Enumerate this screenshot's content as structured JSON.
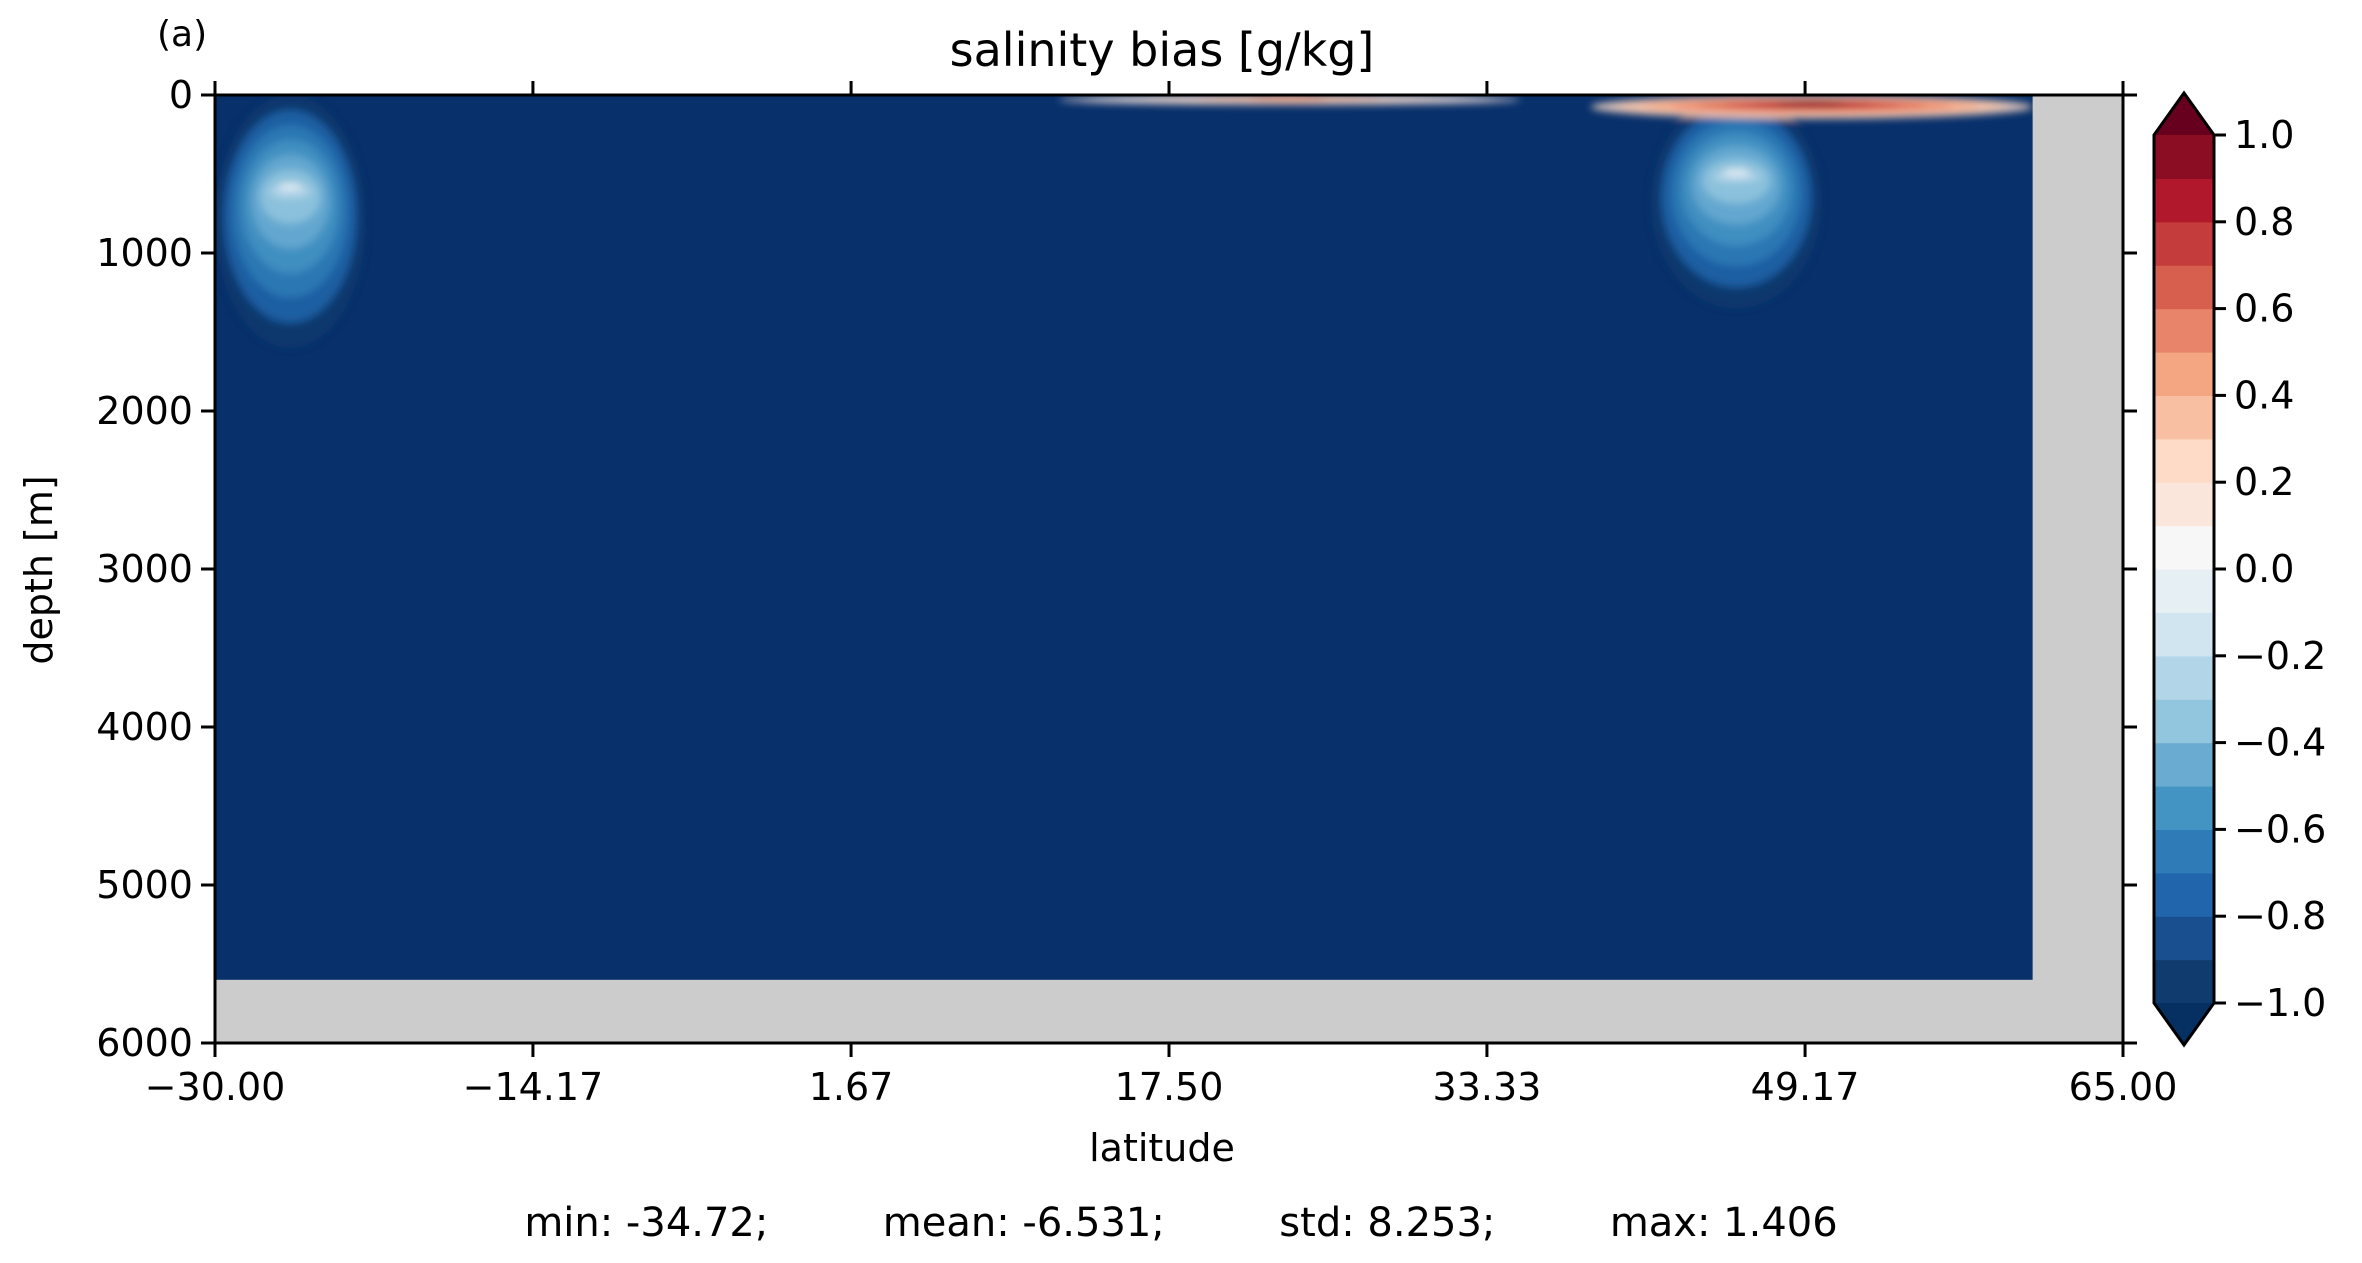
{
  "panel_label": "(a)",
  "chart_data": {
    "type": "heatmap",
    "title": "salinity bias [g/kg]",
    "xlabel": "latitude",
    "ylabel": "depth [m]",
    "xlim": [
      -30.0,
      65.0
    ],
    "ylim": [
      6000,
      0
    ],
    "y_inverted": true,
    "x_ticks": [
      "−30.00",
      "−14.17",
      "1.67",
      "17.50",
      "33.33",
      "49.17",
      "65.00"
    ],
    "x_tick_values": [
      -30.0,
      -14.17,
      1.67,
      17.5,
      33.33,
      49.17,
      65.0
    ],
    "y_ticks": [
      "0",
      "1000",
      "2000",
      "3000",
      "4000",
      "5000",
      "6000"
    ],
    "y_tick_values": [
      0,
      1000,
      2000,
      3000,
      4000,
      5000,
      6000
    ],
    "colorbar": {
      "min": -1.0,
      "max": 1.0,
      "step": 0.1,
      "extend": "both",
      "colormap": "RdBu_r",
      "ticks": [
        "1.0",
        "0.8",
        "0.6",
        "0.4",
        "0.2",
        "0.0",
        "−0.2",
        "−0.4",
        "−0.6",
        "−0.8",
        "−1.0"
      ],
      "tick_values": [
        1.0,
        0.8,
        0.6,
        0.4,
        0.2,
        0.0,
        -0.2,
        -0.4,
        -0.6,
        -0.8,
        -1.0
      ],
      "colors": [
        "#0f3b6e",
        "#1a4f8f",
        "#2166ac",
        "#2f7bb7",
        "#4393c3",
        "#6aabd2",
        "#92c5de",
        "#b3d5e8",
        "#d1e5f0",
        "#e6eff4",
        "#f7f7f7",
        "#fbe6dc",
        "#fddbc7",
        "#f8bfa2",
        "#f4a582",
        "#e8846a",
        "#d6604d",
        "#c43c3c",
        "#b2182b",
        "#8b0d24"
      ],
      "under_color": "#053061",
      "over_color": "#67001f"
    },
    "background_value_color": "#08306b",
    "land_mask_color": "#cccccc",
    "data_extent": {
      "lat_max": 60.5,
      "depth_max": 5600
    },
    "features": [
      {
        "name": "southern-freshening",
        "lat_range": [
          -30.0,
          -22.5
        ],
        "depth_range": [
          0,
          1600
        ],
        "value_range": [
          -0.9,
          -0.1
        ]
      },
      {
        "name": "northern-freshening",
        "lat_range": [
          41.5,
          50.0
        ],
        "depth_range": [
          0,
          1350
        ],
        "value_range": [
          -0.9,
          -0.1
        ]
      },
      {
        "name": "northern-surface-salty",
        "lat_range": [
          38.5,
          60.5
        ],
        "depth_range": [
          0,
          150
        ],
        "value_range": [
          0.2,
          1.0
        ]
      },
      {
        "name": "tropical-surface-salty",
        "lat_range": [
          12.0,
          35.0
        ],
        "depth_range": [
          0,
          60
        ],
        "value_range": [
          0.1,
          0.4
        ]
      }
    ]
  },
  "stats": {
    "min_label": "min: -34.72;",
    "mean_label": "mean: -6.531;",
    "std_label": "std: 8.253;",
    "max_label": "max: 1.406"
  }
}
